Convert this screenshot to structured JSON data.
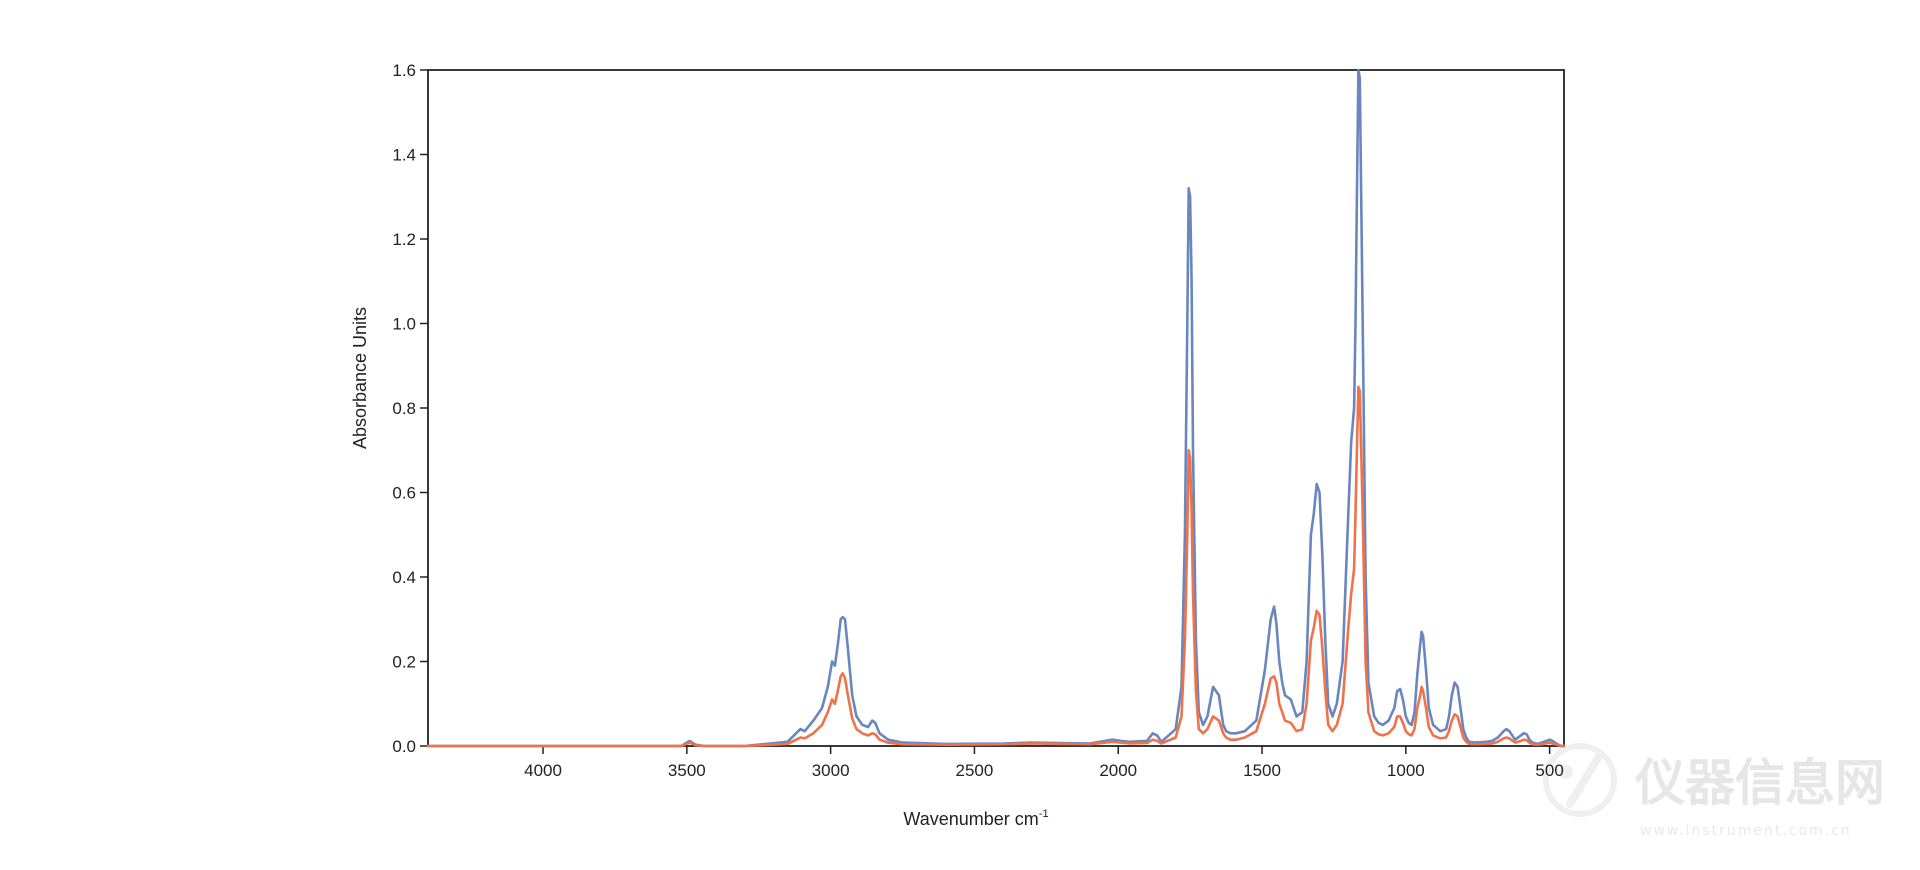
{
  "chart_data": {
    "type": "line",
    "title": "",
    "xlabel": "Wavenumber cm",
    "xlabel_superscript": "-1",
    "ylabel": "Absorbance Units",
    "xlim": [
      4400,
      450
    ],
    "ylim": [
      0,
      1.6
    ],
    "x_reversed": true,
    "grid": false,
    "legend": "none",
    "x_ticks": [
      4000,
      3500,
      3000,
      2500,
      2000,
      1500,
      1000,
      500
    ],
    "x_tick_labels": [
      "4000",
      "3500",
      "3000",
      "2500",
      "2000",
      "1500",
      "1000",
      "500"
    ],
    "y_ticks": [
      0,
      0.2,
      0.4,
      0.6,
      0.8,
      1.0,
      1.2,
      1.4,
      1.6
    ],
    "y_tick_labels": [
      "0.0",
      "0.2",
      "0.4",
      "0.6",
      "0.8",
      "1.0",
      "1.2",
      "1.4",
      "1.6"
    ],
    "series": [
      {
        "color": "#6a86bf",
        "x": [
          4400,
          3800,
          3520,
          3490,
          3470,
          3440,
          3300,
          3150,
          3120,
          3105,
          3090,
          3060,
          3030,
          3010,
          2995,
          2985,
          2975,
          2965,
          2958,
          2950,
          2940,
          2925,
          2910,
          2890,
          2870,
          2855,
          2845,
          2830,
          2800,
          2750,
          2600,
          2400,
          2300,
          2100,
          2020,
          1990,
          1960,
          1900,
          1880,
          1865,
          1850,
          1800,
          1780,
          1768,
          1760,
          1755,
          1750,
          1745,
          1740,
          1730,
          1720,
          1705,
          1690,
          1670,
          1650,
          1635,
          1625,
          1610,
          1590,
          1560,
          1520,
          1490,
          1470,
          1458,
          1450,
          1440,
          1430,
          1420,
          1400,
          1390,
          1380,
          1360,
          1345,
          1330,
          1320,
          1310,
          1300,
          1290,
          1280,
          1270,
          1255,
          1240,
          1220,
          1200,
          1190,
          1180,
          1175,
          1170,
          1165,
          1160,
          1150,
          1140,
          1130,
          1110,
          1095,
          1080,
          1060,
          1040,
          1030,
          1020,
          1010,
          1000,
          990,
          980,
          970,
          960,
          950,
          945,
          940,
          930,
          920,
          905,
          880,
          860,
          850,
          840,
          830,
          820,
          810,
          800,
          790,
          780,
          760,
          720,
          700,
          680,
          660,
          650,
          640,
          620,
          600,
          590,
          580,
          570,
          560,
          540,
          520,
          500,
          490,
          475,
          460,
          450
        ],
        "y": [
          0.0,
          0.0,
          0.0,
          0.012,
          0.003,
          0.0,
          0.0,
          0.01,
          0.03,
          0.04,
          0.035,
          0.06,
          0.09,
          0.14,
          0.2,
          0.19,
          0.24,
          0.3,
          0.305,
          0.3,
          0.23,
          0.12,
          0.07,
          0.05,
          0.045,
          0.06,
          0.055,
          0.03,
          0.015,
          0.008,
          0.005,
          0.006,
          0.008,
          0.006,
          0.015,
          0.012,
          0.01,
          0.012,
          0.03,
          0.025,
          0.01,
          0.04,
          0.14,
          0.5,
          1.0,
          1.32,
          1.3,
          1.1,
          0.7,
          0.25,
          0.08,
          0.05,
          0.07,
          0.14,
          0.12,
          0.05,
          0.035,
          0.03,
          0.03,
          0.035,
          0.06,
          0.18,
          0.3,
          0.33,
          0.29,
          0.2,
          0.15,
          0.12,
          0.11,
          0.09,
          0.07,
          0.08,
          0.2,
          0.5,
          0.55,
          0.62,
          0.6,
          0.45,
          0.25,
          0.1,
          0.07,
          0.1,
          0.2,
          0.55,
          0.72,
          0.8,
          1.0,
          1.3,
          1.6,
          1.58,
          1.0,
          0.4,
          0.15,
          0.07,
          0.055,
          0.05,
          0.06,
          0.09,
          0.13,
          0.135,
          0.11,
          0.07,
          0.055,
          0.05,
          0.08,
          0.17,
          0.24,
          0.27,
          0.26,
          0.18,
          0.09,
          0.05,
          0.035,
          0.04,
          0.07,
          0.12,
          0.15,
          0.14,
          0.09,
          0.04,
          0.02,
          0.01,
          0.008,
          0.01,
          0.012,
          0.02,
          0.035,
          0.04,
          0.035,
          0.015,
          0.025,
          0.03,
          0.028,
          0.015,
          0.008,
          0.005,
          0.01,
          0.015,
          0.012,
          0.005,
          0.0,
          0.0
        ]
      },
      {
        "color": "#f0724a",
        "x": [
          4400,
          3800,
          3520,
          3490,
          3470,
          3440,
          3300,
          3150,
          3120,
          3105,
          3090,
          3060,
          3030,
          3010,
          2995,
          2985,
          2975,
          2965,
          2958,
          2950,
          2940,
          2925,
          2910,
          2890,
          2870,
          2855,
          2845,
          2830,
          2800,
          2750,
          2600,
          2400,
          2300,
          2100,
          2020,
          1990,
          1960,
          1900,
          1880,
          1865,
          1850,
          1800,
          1780,
          1768,
          1760,
          1755,
          1750,
          1745,
          1740,
          1730,
          1720,
          1705,
          1690,
          1670,
          1650,
          1635,
          1625,
          1610,
          1590,
          1560,
          1520,
          1490,
          1470,
          1458,
          1450,
          1440,
          1430,
          1420,
          1400,
          1390,
          1380,
          1360,
          1345,
          1330,
          1320,
          1310,
          1300,
          1290,
          1280,
          1270,
          1255,
          1240,
          1220,
          1200,
          1190,
          1180,
          1175,
          1170,
          1165,
          1160,
          1150,
          1140,
          1130,
          1110,
          1095,
          1080,
          1060,
          1040,
          1030,
          1020,
          1010,
          1000,
          990,
          980,
          970,
          960,
          950,
          945,
          940,
          930,
          920,
          905,
          880,
          860,
          850,
          840,
          830,
          820,
          810,
          800,
          790,
          780,
          760,
          720,
          700,
          680,
          660,
          650,
          640,
          620,
          600,
          590,
          580,
          570,
          560,
          540,
          520,
          500,
          490,
          475,
          460,
          450
        ],
        "y": [
          0.0,
          0.0,
          0.0,
          0.008,
          0.002,
          0.0,
          0.0,
          0.005,
          0.015,
          0.02,
          0.018,
          0.03,
          0.05,
          0.08,
          0.11,
          0.1,
          0.13,
          0.165,
          0.172,
          0.16,
          0.12,
          0.065,
          0.04,
          0.03,
          0.025,
          0.03,
          0.028,
          0.015,
          0.008,
          0.004,
          0.003,
          0.004,
          0.006,
          0.004,
          0.01,
          0.008,
          0.006,
          0.007,
          0.015,
          0.012,
          0.006,
          0.02,
          0.07,
          0.25,
          0.5,
          0.7,
          0.68,
          0.56,
          0.36,
          0.13,
          0.04,
          0.03,
          0.04,
          0.07,
          0.06,
          0.03,
          0.02,
          0.015,
          0.015,
          0.02,
          0.035,
          0.1,
          0.16,
          0.165,
          0.15,
          0.1,
          0.08,
          0.06,
          0.055,
          0.045,
          0.035,
          0.04,
          0.1,
          0.25,
          0.28,
          0.32,
          0.31,
          0.23,
          0.13,
          0.05,
          0.035,
          0.05,
          0.1,
          0.28,
          0.36,
          0.42,
          0.55,
          0.7,
          0.85,
          0.84,
          0.55,
          0.2,
          0.08,
          0.035,
          0.028,
          0.025,
          0.03,
          0.045,
          0.07,
          0.07,
          0.055,
          0.035,
          0.028,
          0.025,
          0.04,
          0.09,
          0.12,
          0.14,
          0.13,
          0.09,
          0.045,
          0.025,
          0.018,
          0.02,
          0.035,
          0.06,
          0.075,
          0.07,
          0.045,
          0.02,
          0.01,
          0.005,
          0.004,
          0.005,
          0.006,
          0.01,
          0.018,
          0.02,
          0.018,
          0.008,
          0.012,
          0.015,
          0.014,
          0.008,
          0.004,
          0.003,
          0.005,
          0.008,
          0.006,
          0.003,
          0.0,
          0.0
        ]
      }
    ]
  },
  "watermark": {
    "brand": "仪器信息网",
    "url": "www.instrument.com.cn",
    "logo_icon": "instrument-logo-icon"
  }
}
